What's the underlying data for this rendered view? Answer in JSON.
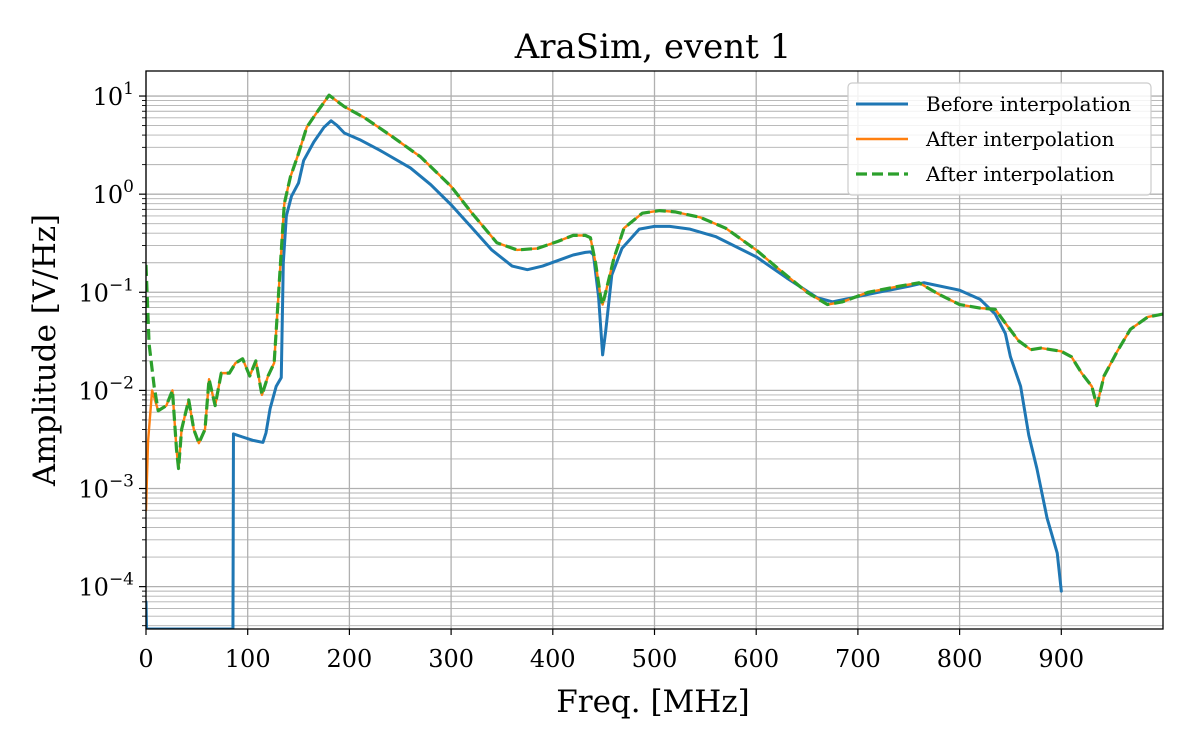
{
  "chart_data": {
    "type": "line",
    "title": "AraSim, event 1",
    "xlabel": "Freq. [MHz]",
    "ylabel": "Amplitude [V/Hz]",
    "xlim": [
      0,
      1000
    ],
    "ylim": [
      3.7e-05,
      18
    ],
    "yscale": "log",
    "grid": true,
    "grid_minor_y": true,
    "legend_position": "top-right",
    "x_ticks": [
      0,
      100,
      200,
      300,
      400,
      500,
      600,
      700,
      800,
      900
    ],
    "x_tick_labels": [
      "0",
      "100",
      "200",
      "300",
      "400",
      "500",
      "600",
      "700",
      "800",
      "900"
    ],
    "y_ticks": [
      0.0001,
      0.001,
      0.01,
      0.1,
      1,
      10
    ],
    "y_tick_labels": [
      {
        "base": "10",
        "exp": "−4"
      },
      {
        "base": "10",
        "exp": "−3"
      },
      {
        "base": "10",
        "exp": "−2"
      },
      {
        "base": "10",
        "exp": "−1"
      },
      {
        "base": "10",
        "exp": "0"
      },
      {
        "base": "10",
        "exp": "1"
      }
    ],
    "series": [
      {
        "name": "Before interpolation",
        "color": "#1f77b4",
        "style": "solid",
        "points": [
          [
            0,
            7e-05
          ],
          [
            0.5,
            3.7e-05
          ],
          [
            85.5,
            3.7e-05
          ],
          [
            86,
            0.0036
          ],
          [
            95,
            0.00335
          ],
          [
            105,
            0.0031
          ],
          [
            115,
            0.00295
          ],
          [
            118,
            0.0037
          ],
          [
            122,
            0.0065
          ],
          [
            128,
            0.011
          ],
          [
            133,
            0.0135
          ],
          [
            135,
            0.2
          ],
          [
            138,
            0.6
          ],
          [
            143,
            0.95
          ],
          [
            150,
            1.3
          ],
          [
            155,
            2.2
          ],
          [
            165,
            3.4
          ],
          [
            175,
            4.8
          ],
          [
            182,
            5.6
          ],
          [
            188,
            5.0
          ],
          [
            195,
            4.2
          ],
          [
            210,
            3.6
          ],
          [
            230,
            2.8
          ],
          [
            260,
            1.85
          ],
          [
            280,
            1.25
          ],
          [
            300,
            0.78
          ],
          [
            320,
            0.46
          ],
          [
            340,
            0.27
          ],
          [
            360,
            0.185
          ],
          [
            375,
            0.17
          ],
          [
            390,
            0.185
          ],
          [
            410,
            0.22
          ],
          [
            420,
            0.24
          ],
          [
            432,
            0.255
          ],
          [
            437,
            0.258
          ],
          [
            440,
            0.24
          ],
          [
            445,
            0.09
          ],
          [
            449,
            0.023
          ],
          [
            452,
            0.04
          ],
          [
            458,
            0.15
          ],
          [
            468,
            0.28
          ],
          [
            485,
            0.44
          ],
          [
            500,
            0.47
          ],
          [
            515,
            0.47
          ],
          [
            535,
            0.44
          ],
          [
            560,
            0.37
          ],
          [
            600,
            0.23
          ],
          [
            630,
            0.14
          ],
          [
            660,
            0.088
          ],
          [
            675,
            0.08
          ],
          [
            690,
            0.086
          ],
          [
            720,
            0.1
          ],
          [
            750,
            0.115
          ],
          [
            765,
            0.125
          ],
          [
            800,
            0.105
          ],
          [
            820,
            0.085
          ],
          [
            835,
            0.06
          ],
          [
            845,
            0.038
          ],
          [
            850,
            0.022
          ],
          [
            860,
            0.011
          ],
          [
            868,
            0.0035
          ],
          [
            876,
            0.0016
          ],
          [
            886,
            0.0005
          ],
          [
            896,
            0.00022
          ],
          [
            900,
            9e-05
          ]
        ]
      },
      {
        "name": "After interpolation",
        "color": "#ff7f0e",
        "style": "solid",
        "points": [
          [
            0,
            0.0006
          ],
          [
            2,
            0.003
          ],
          [
            6,
            0.01
          ],
          [
            12,
            0.0062
          ],
          [
            20,
            0.007
          ],
          [
            26,
            0.01
          ],
          [
            30,
            0.0025
          ],
          [
            32,
            0.0016
          ],
          [
            35,
            0.004
          ],
          [
            42,
            0.008
          ],
          [
            47,
            0.004
          ],
          [
            52,
            0.0029
          ],
          [
            58,
            0.004
          ],
          [
            62,
            0.013
          ],
          [
            68,
            0.007
          ],
          [
            74,
            0.015
          ],
          [
            82,
            0.015
          ],
          [
            88,
            0.019
          ],
          [
            95,
            0.021
          ],
          [
            102,
            0.014
          ],
          [
            108,
            0.02
          ],
          [
            114,
            0.009
          ],
          [
            120,
            0.014
          ],
          [
            126,
            0.019
          ],
          [
            132,
            0.18
          ],
          [
            136,
            0.8
          ],
          [
            142,
            1.5
          ],
          [
            150,
            2.6
          ],
          [
            158,
            4.8
          ],
          [
            170,
            7.3
          ],
          [
            180,
            10.2
          ],
          [
            195,
            7.8
          ],
          [
            215,
            6.0
          ],
          [
            240,
            4.0
          ],
          [
            270,
            2.4
          ],
          [
            300,
            1.2
          ],
          [
            320,
            0.65
          ],
          [
            345,
            0.32
          ],
          [
            365,
            0.27
          ],
          [
            385,
            0.28
          ],
          [
            405,
            0.33
          ],
          [
            420,
            0.38
          ],
          [
            432,
            0.38
          ],
          [
            437,
            0.36
          ],
          [
            442,
            0.2
          ],
          [
            447,
            0.09
          ],
          [
            449,
            0.075
          ],
          [
            452,
            0.1
          ],
          [
            460,
            0.22
          ],
          [
            470,
            0.45
          ],
          [
            488,
            0.64
          ],
          [
            505,
            0.68
          ],
          [
            520,
            0.66
          ],
          [
            545,
            0.58
          ],
          [
            570,
            0.45
          ],
          [
            600,
            0.27
          ],
          [
            620,
            0.18
          ],
          [
            650,
            0.1
          ],
          [
            670,
            0.075
          ],
          [
            685,
            0.08
          ],
          [
            710,
            0.1
          ],
          [
            740,
            0.115
          ],
          [
            760,
            0.125
          ],
          [
            780,
            0.095
          ],
          [
            800,
            0.075
          ],
          [
            820,
            0.069
          ],
          [
            835,
            0.067
          ],
          [
            848,
            0.044
          ],
          [
            858,
            0.032
          ],
          [
            870,
            0.026
          ],
          [
            880,
            0.027
          ],
          [
            890,
            0.026
          ],
          [
            900,
            0.025
          ],
          [
            910,
            0.022
          ],
          [
            920,
            0.015
          ],
          [
            930,
            0.011
          ],
          [
            935,
            0.007
          ],
          [
            942,
            0.014
          ],
          [
            955,
            0.025
          ],
          [
            968,
            0.042
          ],
          [
            985,
            0.056
          ],
          [
            1000,
            0.06
          ]
        ]
      },
      {
        "name": "After interpolation",
        "color": "#2ca02c",
        "style": "dashed",
        "points": [
          [
            0,
            0.19
          ],
          [
            3,
            0.03
          ],
          [
            8,
            0.011
          ],
          [
            12,
            0.0062
          ],
          [
            20,
            0.007
          ],
          [
            26,
            0.01
          ],
          [
            30,
            0.0025
          ],
          [
            32,
            0.0016
          ],
          [
            35,
            0.004
          ],
          [
            42,
            0.008
          ],
          [
            47,
            0.004
          ],
          [
            52,
            0.0029
          ],
          [
            58,
            0.004
          ],
          [
            62,
            0.013
          ],
          [
            68,
            0.007
          ],
          [
            74,
            0.015
          ],
          [
            82,
            0.015
          ],
          [
            88,
            0.019
          ],
          [
            95,
            0.021
          ],
          [
            102,
            0.014
          ],
          [
            108,
            0.02
          ],
          [
            114,
            0.009
          ],
          [
            120,
            0.014
          ],
          [
            126,
            0.019
          ],
          [
            132,
            0.18
          ],
          [
            136,
            0.8
          ],
          [
            142,
            1.5
          ],
          [
            150,
            2.6
          ],
          [
            158,
            4.8
          ],
          [
            170,
            7.3
          ],
          [
            180,
            10.2
          ],
          [
            195,
            7.8
          ],
          [
            215,
            6.0
          ],
          [
            240,
            4.0
          ],
          [
            270,
            2.4
          ],
          [
            300,
            1.2
          ],
          [
            320,
            0.65
          ],
          [
            345,
            0.32
          ],
          [
            365,
            0.27
          ],
          [
            385,
            0.28
          ],
          [
            405,
            0.33
          ],
          [
            420,
            0.38
          ],
          [
            432,
            0.38
          ],
          [
            437,
            0.36
          ],
          [
            442,
            0.2
          ],
          [
            447,
            0.09
          ],
          [
            449,
            0.075
          ],
          [
            452,
            0.1
          ],
          [
            460,
            0.22
          ],
          [
            470,
            0.45
          ],
          [
            488,
            0.64
          ],
          [
            505,
            0.68
          ],
          [
            520,
            0.66
          ],
          [
            545,
            0.58
          ],
          [
            570,
            0.45
          ],
          [
            600,
            0.27
          ],
          [
            620,
            0.18
          ],
          [
            650,
            0.1
          ],
          [
            670,
            0.075
          ],
          [
            685,
            0.08
          ],
          [
            710,
            0.1
          ],
          [
            740,
            0.115
          ],
          [
            760,
            0.125
          ],
          [
            780,
            0.095
          ],
          [
            800,
            0.075
          ],
          [
            820,
            0.069
          ],
          [
            835,
            0.067
          ],
          [
            848,
            0.044
          ],
          [
            858,
            0.032
          ],
          [
            870,
            0.026
          ],
          [
            880,
            0.027
          ],
          [
            890,
            0.026
          ],
          [
            900,
            0.025
          ],
          [
            910,
            0.022
          ],
          [
            920,
            0.015
          ],
          [
            930,
            0.011
          ],
          [
            935,
            0.007
          ],
          [
            942,
            0.014
          ],
          [
            955,
            0.025
          ],
          [
            968,
            0.042
          ],
          [
            985,
            0.056
          ],
          [
            1000,
            0.06
          ]
        ]
      }
    ]
  }
}
